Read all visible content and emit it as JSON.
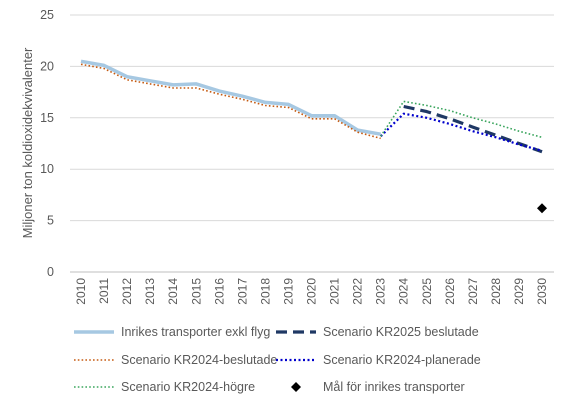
{
  "chart_data": {
    "type": "line",
    "ylabel": "Miljoner ton koldioxidekvivalenter",
    "xlabel": "",
    "ylim": [
      0,
      25
    ],
    "yticks": [
      0,
      5,
      10,
      15,
      20,
      25
    ],
    "x": [
      2010,
      2011,
      2012,
      2013,
      2014,
      2015,
      2016,
      2017,
      2018,
      2019,
      2020,
      2021,
      2022,
      2023,
      2024,
      2025,
      2026,
      2027,
      2028,
      2029,
      2030
    ],
    "x_tick_labels": [
      "2010",
      "2011",
      "2012",
      "2013",
      "2014",
      "2015",
      "2016",
      "2017",
      "2018",
      "2019",
      "2020",
      "2021",
      "2022",
      "2023",
      "2024",
      "2025",
      "2026",
      "2027",
      "2028",
      "2029",
      "2030"
    ],
    "grid": "horizontal",
    "legend_position": "bottom",
    "series": [
      {
        "name": "Inrikes transporter exkl flyg",
        "style": "solid",
        "color": "#a6c8e2",
        "width": 3.5,
        "points": [
          [
            2010,
            20.5
          ],
          [
            2011,
            20.1
          ],
          [
            2012,
            19.0
          ],
          [
            2013,
            18.6
          ],
          [
            2014,
            18.2
          ],
          [
            2015,
            18.3
          ],
          [
            2016,
            17.6
          ],
          [
            2017,
            17.1
          ],
          [
            2018,
            16.5
          ],
          [
            2019,
            16.3
          ],
          [
            2020,
            15.2
          ],
          [
            2021,
            15.2
          ],
          [
            2022,
            13.8
          ],
          [
            2023,
            13.4
          ]
        ]
      },
      {
        "name": "Scenario KR2025 beslutade",
        "style": "dash",
        "color": "#1f3864",
        "width": 3.2,
        "points": [
          [
            2024,
            16.1
          ],
          [
            2025,
            15.6
          ],
          [
            2026,
            14.9
          ],
          [
            2027,
            14.1
          ],
          [
            2028,
            13.3
          ],
          [
            2029,
            12.5
          ],
          [
            2030,
            11.7
          ]
        ]
      },
      {
        "name": "Scenario KR2024-beslutade",
        "style": "dot",
        "color": "#c55a11",
        "width": 1.6,
        "points": [
          [
            2010,
            20.2
          ],
          [
            2011,
            19.8
          ],
          [
            2012,
            18.7
          ],
          [
            2013,
            18.3
          ],
          [
            2014,
            17.9
          ],
          [
            2015,
            17.9
          ],
          [
            2016,
            17.3
          ],
          [
            2017,
            16.8
          ],
          [
            2018,
            16.2
          ],
          [
            2019,
            16.0
          ],
          [
            2020,
            14.9
          ],
          [
            2021,
            14.9
          ],
          [
            2022,
            13.6
          ],
          [
            2023,
            13.0
          ]
        ]
      },
      {
        "name": "Scenario KR2024-planerade",
        "style": "dot",
        "color": "#0000cc",
        "width": 2.2,
        "points": [
          [
            2023,
            13.2
          ],
          [
            2024,
            15.4
          ],
          [
            2025,
            15.0
          ],
          [
            2026,
            14.4
          ],
          [
            2027,
            13.7
          ],
          [
            2028,
            13.1
          ],
          [
            2029,
            12.4
          ],
          [
            2030,
            11.8
          ]
        ]
      },
      {
        "name": "Scenario KR2024-högre",
        "style": "dot",
        "color": "#3aa55d",
        "width": 1.6,
        "points": [
          [
            2023,
            13.2
          ],
          [
            2024,
            16.6
          ],
          [
            2025,
            16.2
          ],
          [
            2026,
            15.7
          ],
          [
            2027,
            15.0
          ],
          [
            2028,
            14.4
          ],
          [
            2029,
            13.7
          ],
          [
            2030,
            13.1
          ]
        ]
      },
      {
        "name": "Mål för inrikes transporter",
        "style": "marker",
        "marker": "diamond",
        "color": "#000000",
        "points": [
          [
            2030,
            6.2
          ]
        ]
      }
    ]
  }
}
